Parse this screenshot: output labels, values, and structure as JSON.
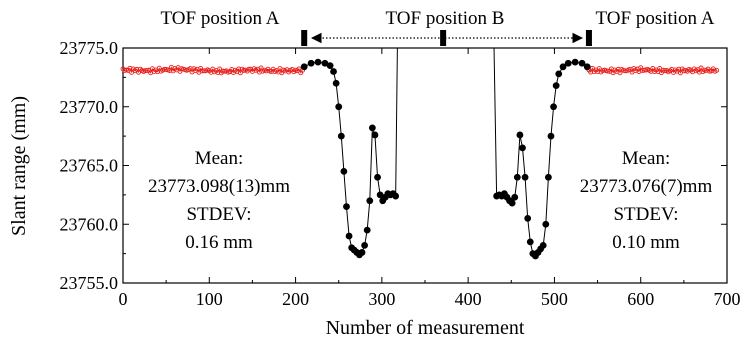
{
  "chart_data": {
    "type": "scatter",
    "xlabel": "Number of measurement",
    "ylabel": "Slant range (mm)",
    "xlim": [
      0,
      700
    ],
    "ylim": [
      23755.0,
      23775.0
    ],
    "x_ticks": [
      "0",
      "100",
      "200",
      "300",
      "400",
      "500",
      "600",
      "700"
    ],
    "y_ticks": [
      "23755.0",
      "23760.0",
      "23765.0",
      "23770.0",
      "23775.0"
    ],
    "grid": false,
    "legend": "none",
    "colors": {
      "position_a": "#e8201c",
      "position_b": "#000000"
    },
    "series": [
      {
        "role": "position_a",
        "marker": "open-circle-with-line",
        "values": [
          [
            0,
            23773.15
          ],
          [
            30,
            23773.05
          ],
          [
            60,
            23773.2
          ],
          [
            90,
            23773.1
          ],
          [
            120,
            23773.0
          ],
          [
            150,
            23773.15
          ],
          [
            180,
            23773.05
          ],
          [
            208,
            23773.1
          ],
          [
            540,
            23773.1
          ],
          [
            570,
            23773.05
          ],
          [
            600,
            23773.15
          ],
          [
            630,
            23773.05
          ],
          [
            660,
            23773.1
          ],
          [
            688,
            23773.1
          ]
        ]
      },
      {
        "role": "transition",
        "marker": "filled-circle-with-line",
        "values": [
          [
            210,
            23773.4
          ],
          [
            218,
            23773.7
          ],
          [
            226,
            23773.8
          ],
          [
            234,
            23773.7
          ],
          [
            240,
            23773.5
          ],
          [
            244,
            23773.0
          ],
          [
            247,
            23772.0
          ],
          [
            250,
            23770.0
          ],
          [
            253,
            23767.5
          ],
          [
            256,
            23764.5
          ],
          [
            259,
            23761.5
          ],
          [
            262,
            23759.0
          ],
          [
            265,
            23758.0
          ],
          [
            268,
            23757.8
          ],
          [
            271,
            23757.6
          ],
          [
            274,
            23757.4
          ],
          [
            277,
            23757.6
          ],
          [
            280,
            23758.2
          ],
          [
            283,
            23759.5
          ],
          [
            286,
            23762.0
          ],
          [
            289,
            23768.2
          ],
          [
            292,
            23767.6
          ],
          [
            295,
            23764.0
          ],
          [
            298,
            23762.5
          ],
          [
            301,
            23762.0
          ],
          [
            304,
            23762.3
          ],
          [
            307,
            23762.6
          ],
          [
            310,
            23762.5
          ],
          [
            313,
            23762.6
          ],
          [
            316,
            23762.4
          ],
          [
            318,
            23775.0
          ],
          [
            430,
            23775.0
          ],
          [
            433,
            23762.4
          ],
          [
            436,
            23762.5
          ],
          [
            439,
            23762.4
          ],
          [
            442,
            23762.6
          ],
          [
            445,
            23762.3
          ],
          [
            448,
            23762.0
          ],
          [
            451,
            23761.8
          ],
          [
            454,
            23762.3
          ],
          [
            457,
            23764.0
          ],
          [
            460,
            23767.6
          ],
          [
            463,
            23766.5
          ],
          [
            466,
            23764.0
          ],
          [
            469,
            23760.5
          ],
          [
            472,
            23758.5
          ],
          [
            475,
            23757.5
          ],
          [
            478,
            23757.3
          ],
          [
            481,
            23757.6
          ],
          [
            484,
            23757.9
          ],
          [
            487,
            23758.2
          ],
          [
            490,
            23760.0
          ],
          [
            493,
            23764.0
          ],
          [
            496,
            23767.5
          ],
          [
            499,
            23770.0
          ],
          [
            502,
            23771.8
          ],
          [
            505,
            23772.8
          ],
          [
            510,
            23773.4
          ],
          [
            516,
            23773.7
          ],
          [
            524,
            23773.8
          ],
          [
            532,
            23773.7
          ],
          [
            538,
            23773.4
          ]
        ]
      }
    ],
    "annotations": {
      "top_labels": [
        "TOF position A",
        "TOF position B",
        "TOF position A"
      ],
      "left_stats": [
        "Mean:",
        "23773.098(13)mm",
        "STDEV:",
        "0.16 mm"
      ],
      "right_stats": [
        "Mean:",
        "23773.076(7)mm",
        "STDEV:",
        "0.10 mm"
      ],
      "position_markers_x": [
        210,
        371,
        540
      ]
    }
  }
}
